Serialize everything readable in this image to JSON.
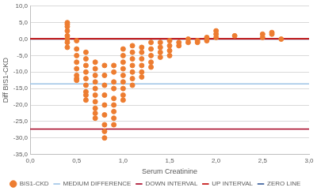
{
  "chart_data": {
    "type": "scatter",
    "x_label": "Serum Creatinine",
    "y_label": "Diff BIS1-CKD",
    "xlim": [
      0,
      3
    ],
    "xticks": [
      {
        "value": 0,
        "label": "0,0"
      },
      {
        "value": 0.5,
        "label": "0,5"
      },
      {
        "value": 1,
        "label": "1,0"
      },
      {
        "value": 1.5,
        "label": "1,5"
      },
      {
        "value": 2,
        "label": "2,0"
      },
      {
        "value": 2.5,
        "label": "2,5"
      },
      {
        "value": 3,
        "label": "3,0"
      }
    ],
    "ylim": [
      -35,
      10
    ],
    "yticks": [
      {
        "value": -35,
        "label": "-35,0"
      },
      {
        "value": -30,
        "label": "-30,0"
      },
      {
        "value": -25,
        "label": "-25,0"
      },
      {
        "value": -20,
        "label": "-20,0"
      },
      {
        "value": -15,
        "label": "-15,0"
      },
      {
        "value": -10,
        "label": "-10,0"
      },
      {
        "value": -5,
        "label": "-5,0"
      },
      {
        "value": 0,
        "label": "0,0"
      },
      {
        "value": 5,
        "label": "5,0"
      },
      {
        "value": 10,
        "label": "10,0"
      }
    ],
    "grid": "y",
    "legend": "bottom",
    "series": [
      {
        "name": "BIS1-CKD",
        "type": "scatter",
        "marker": "circle",
        "color": "#ed7d31",
        "x": [
          0.4,
          0.4,
          0.4,
          0.4,
          0.4,
          0.4,
          0.4,
          0.4,
          0.5,
          0.5,
          0.5,
          0.5,
          0.5,
          0.5,
          0.5,
          0.5,
          0.6,
          0.6,
          0.6,
          0.6,
          0.6,
          0.6,
          0.6,
          0.6,
          0.6,
          0.7,
          0.7,
          0.7,
          0.7,
          0.7,
          0.7,
          0.7,
          0.7,
          0.7,
          0.7,
          0.8,
          0.8,
          0.8,
          0.8,
          0.8,
          0.8,
          0.8,
          0.8,
          0.8,
          0.9,
          0.9,
          0.9,
          0.9,
          0.9,
          0.9,
          0.9,
          0.9,
          0.9,
          1.0,
          1.0,
          1.0,
          1.0,
          1.0,
          1.0,
          1.0,
          1.0,
          1.0,
          1.1,
          1.1,
          1.1,
          1.1,
          1.1,
          1.1,
          1.1,
          1.2,
          1.2,
          1.2,
          1.2,
          1.2,
          1.2,
          1.3,
          1.3,
          1.3,
          1.3,
          1.3,
          1.4,
          1.4,
          1.4,
          1.4,
          1.5,
          1.5,
          1.5,
          1.5,
          1.6,
          1.6,
          1.7,
          1.7,
          1.8,
          1.8,
          1.9,
          1.9,
          2.0,
          2.0,
          2.0,
          2.2,
          2.5,
          2.5,
          2.6,
          2.6,
          2.7
        ],
        "values": [
          5,
          4.5,
          3.8,
          2.5,
          1,
          0,
          -1,
          -2.5,
          -0.5,
          -3,
          -5,
          -7,
          -9,
          -11,
          -12,
          -12.5,
          -4,
          -6,
          -8,
          -10,
          -12,
          -14,
          -16,
          -17,
          -18.5,
          -7,
          -9,
          -11,
          -13,
          -15,
          -17,
          -19,
          -21,
          -22.5,
          -24,
          -8,
          -11,
          -14,
          -17,
          -20,
          -23,
          -26,
          -28,
          -30,
          -8,
          -10,
          -13,
          -15,
          -18,
          -20,
          -22,
          -24,
          -26,
          -3,
          -5,
          -7,
          -9,
          -11,
          -13,
          -15,
          -17,
          -18.5,
          -2,
          -4,
          -6,
          -8,
          -10,
          -12,
          -14,
          -2.5,
          -4,
          -6,
          -8,
          -10,
          -11.5,
          -1,
          -3,
          -5,
          -7,
          -8.5,
          -1,
          -2.5,
          -4,
          -5.5,
          -0.5,
          -2,
          -3.5,
          -5,
          -1,
          -2,
          0,
          -1,
          -0.5,
          -1,
          0.5,
          -0.5,
          2.5,
          1.5,
          0.5,
          1,
          1.5,
          0.5,
          2,
          1.5,
          0
        ]
      },
      {
        "name": "MEDIUM DIFFERENCE",
        "type": "line",
        "line_style": "solid",
        "color": "#9dc3e6",
        "x": [
          0,
          3
        ],
        "values": [
          -13.6,
          -13.6
        ]
      },
      {
        "name": "DOWN INTERVAL",
        "type": "line",
        "line_style": "solid",
        "color": "#a50021",
        "x": [
          0,
          3
        ],
        "values": [
          -27.3,
          -27.3
        ]
      },
      {
        "name": "UP INTERVAL",
        "type": "line",
        "line_style": "solid",
        "color": "#c00000",
        "x": [
          0,
          3
        ],
        "values": [
          0.1,
          0.1
        ]
      },
      {
        "name": "ZERO LINE",
        "type": "line",
        "line_style": "solid",
        "color": "#2f5597",
        "x": [
          0,
          3
        ],
        "values": [
          0,
          0
        ]
      }
    ]
  }
}
